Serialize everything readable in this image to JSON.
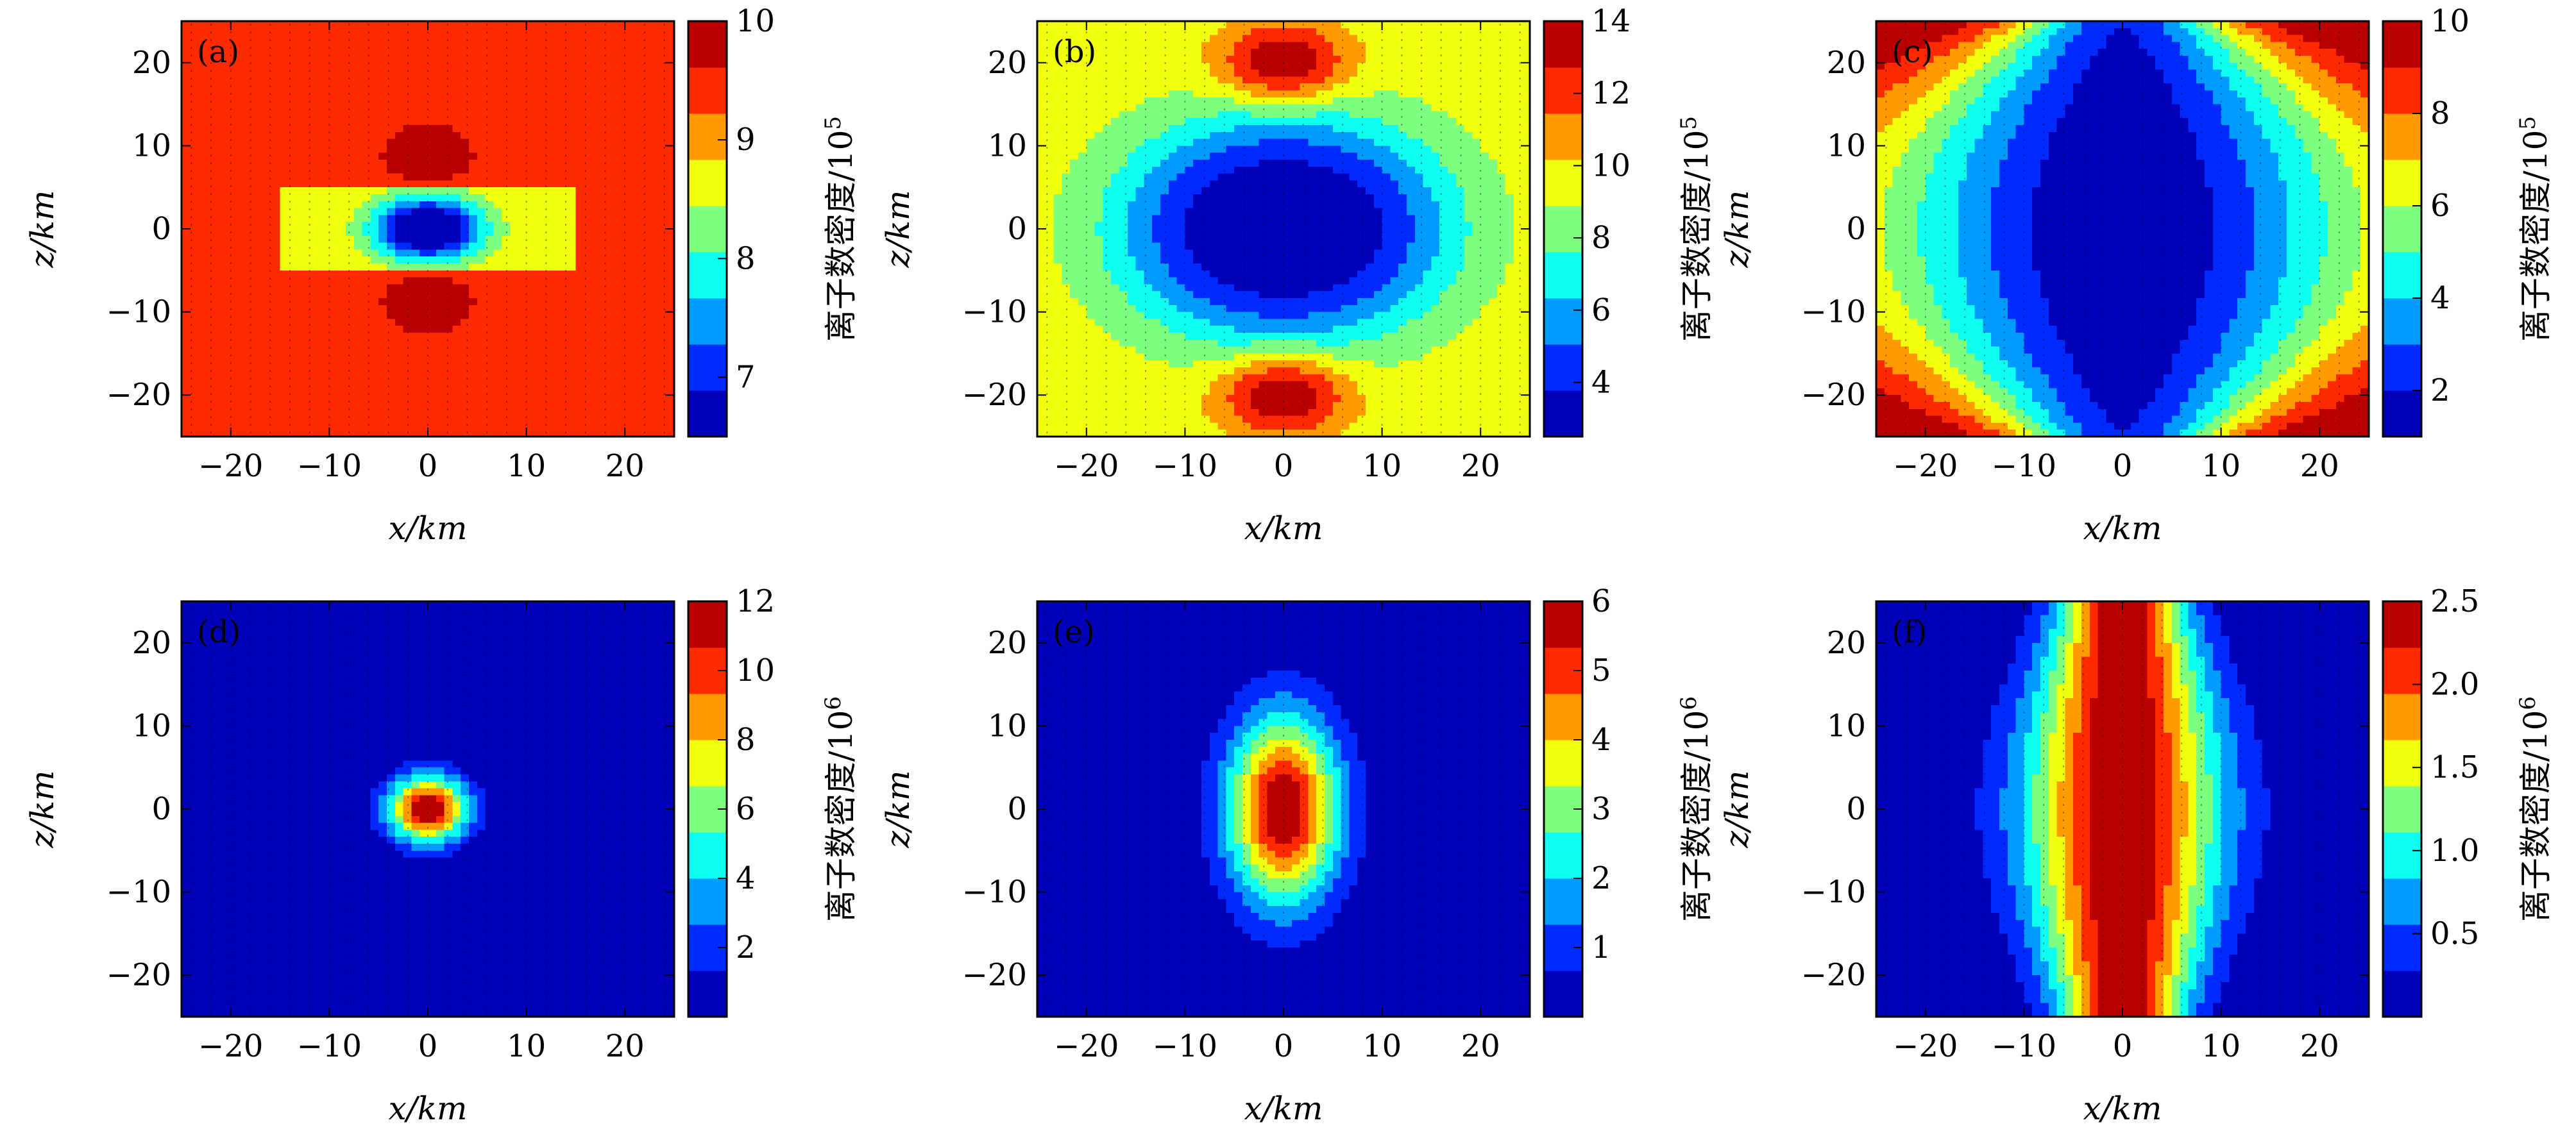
{
  "figure": {
    "colormap": [
      "#00007f",
      "#0000ff",
      "#007fff",
      "#00ffff",
      "#7fff7f",
      "#ffff00",
      "#ff7f00",
      "#ff0000",
      "#7f0000"
    ]
  },
  "chart_data": [
    {
      "panel": "(a)",
      "type": "heatmap",
      "pattern": "a",
      "xlabel": "x/km",
      "ylabel": "z/km",
      "xlim": [
        -25,
        25
      ],
      "ylim": [
        -25,
        25
      ],
      "xticks": [
        -20,
        -10,
        0,
        10,
        20
      ],
      "yticks": [
        -20,
        -10,
        0,
        10,
        20
      ],
      "xtick_labels": [
        "−20",
        "−10",
        "0",
        "10",
        "20"
      ],
      "ytick_labels": [
        "−20",
        "−10",
        "0",
        "10",
        "20"
      ],
      "colorbar": {
        "label": "离子数密度/10",
        "exponent": "5",
        "range": [
          6.5,
          10
        ],
        "ticks": [
          7,
          8,
          9,
          10
        ],
        "tick_labels": [
          "7",
          "8",
          "9",
          "10"
        ]
      },
      "description": "Background 9.4; maxima ≈10 at (0, ±8); minimum ≈6.6 at origin; horizontal band ≈8.8 for |x| < 15, |z| < 5"
    },
    {
      "panel": "(b)",
      "type": "heatmap",
      "pattern": "b",
      "xlabel": "x/km",
      "ylabel": "z/km",
      "xlim": [
        -25,
        25
      ],
      "ylim": [
        -25,
        25
      ],
      "xticks": [
        -20,
        -10,
        0,
        10,
        20
      ],
      "yticks": [
        -20,
        -10,
        0,
        10,
        20
      ],
      "xtick_labels": [
        "−20",
        "−10",
        "0",
        "10",
        "20"
      ],
      "ytick_labels": [
        "−20",
        "−10",
        "0",
        "10",
        "20"
      ],
      "colorbar": {
        "label": "离子数密度/10",
        "exponent": "5",
        "range": [
          2.5,
          14
        ],
        "ticks": [
          4,
          6,
          8,
          10,
          12,
          14
        ],
        "tick_labels": [
          "4",
          "6",
          "8",
          "10",
          "12",
          "14"
        ]
      },
      "description": "Background ≈9.5; depletion ≈3 centred at origin (|x| < 17, |z| < 14); enhancements ≈14 near (0, ±20)"
    },
    {
      "panel": "(c)",
      "type": "heatmap",
      "pattern": "c",
      "xlabel": "x/km",
      "ylabel": "z/km",
      "xlim": [
        -25,
        25
      ],
      "ylim": [
        -25,
        25
      ],
      "xticks": [
        -20,
        -10,
        0,
        10,
        20
      ],
      "yticks": [
        -20,
        -10,
        0,
        10,
        20
      ],
      "xtick_labels": [
        "−20",
        "−10",
        "0",
        "10",
        "20"
      ],
      "ytick_labels": [
        "−20",
        "−10",
        "0",
        "10",
        "20"
      ],
      "colorbar": {
        "label": "离子数密度/10",
        "exponent": "5",
        "range": [
          1,
          10
        ],
        "ticks": [
          2,
          4,
          6,
          8,
          10
        ],
        "tick_labels": [
          "2",
          "4",
          "6",
          "8",
          "10"
        ]
      },
      "description": "Background ≈8.5; elongated vertical depletion ≈1.5 along x = 0; maxima ≈10 at the corners"
    },
    {
      "panel": "(d)",
      "type": "heatmap",
      "pattern": "d",
      "xlabel": "x/km",
      "ylabel": "z/km",
      "xlim": [
        -25,
        25
      ],
      "ylim": [
        -25,
        25
      ],
      "xticks": [
        -20,
        -10,
        0,
        10,
        20
      ],
      "yticks": [
        -20,
        -10,
        0,
        10,
        20
      ],
      "xtick_labels": [
        "−20",
        "−10",
        "0",
        "10",
        "20"
      ],
      "ytick_labels": [
        "−20",
        "−10",
        "0",
        "10",
        "20"
      ],
      "colorbar": {
        "label": "离子数密度/10",
        "exponent": "6",
        "range": [
          0,
          12
        ],
        "ticks": [
          2,
          4,
          6,
          8,
          10,
          12
        ],
        "tick_labels": [
          "2",
          "4",
          "6",
          "8",
          "10",
          "12"
        ]
      },
      "description": "Circular enhancement at origin, peak ≈12, radius ≈6 km; background ≈0"
    },
    {
      "panel": "(e)",
      "type": "heatmap",
      "pattern": "e",
      "xlabel": "x/km",
      "ylabel": "z/km",
      "xlim": [
        -25,
        25
      ],
      "ylim": [
        -25,
        25
      ],
      "xticks": [
        -20,
        -10,
        0,
        10,
        20
      ],
      "yticks": [
        -20,
        -10,
        0,
        10,
        20
      ],
      "xtick_labels": [
        "−20",
        "−10",
        "0",
        "10",
        "20"
      ],
      "ytick_labels": [
        "−20",
        "−10",
        "0",
        "10",
        "20"
      ],
      "colorbar": {
        "label": "离子数密度/10",
        "exponent": "6",
        "range": [
          0,
          6
        ],
        "ticks": [
          1,
          2,
          3,
          4,
          5,
          6
        ],
        "tick_labels": [
          "1",
          "2",
          "3",
          "4",
          "5",
          "6"
        ]
      },
      "description": "Elliptical enhancement at origin, peak ≈6; semi-axes ≈10 km (x) and 18 km (z)"
    },
    {
      "panel": "(f)",
      "type": "heatmap",
      "pattern": "f",
      "xlabel": "x/km",
      "ylabel": "z/km",
      "xlim": [
        -25,
        25
      ],
      "ylim": [
        -25,
        25
      ],
      "xticks": [
        -20,
        -10,
        0,
        10,
        20
      ],
      "yticks": [
        -20,
        -10,
        0,
        10,
        20
      ],
      "xtick_labels": [
        "−20",
        "−10",
        "0",
        "10",
        "20"
      ],
      "ytick_labels": [
        "−20",
        "−10",
        "0",
        "10",
        "20"
      ],
      "colorbar": {
        "label": "离子数密度/10",
        "exponent": "6",
        "range": [
          0,
          2.5
        ],
        "ticks": [
          0.5,
          1.0,
          1.5,
          2.0,
          2.5
        ],
        "tick_labels": [
          "0.5",
          "1.0",
          "1.5",
          "2.0",
          "2.5"
        ]
      },
      "description": "Vertical sheet of enhancement along x = 0, peak ≈2.5, width growing toward z = 0"
    }
  ]
}
